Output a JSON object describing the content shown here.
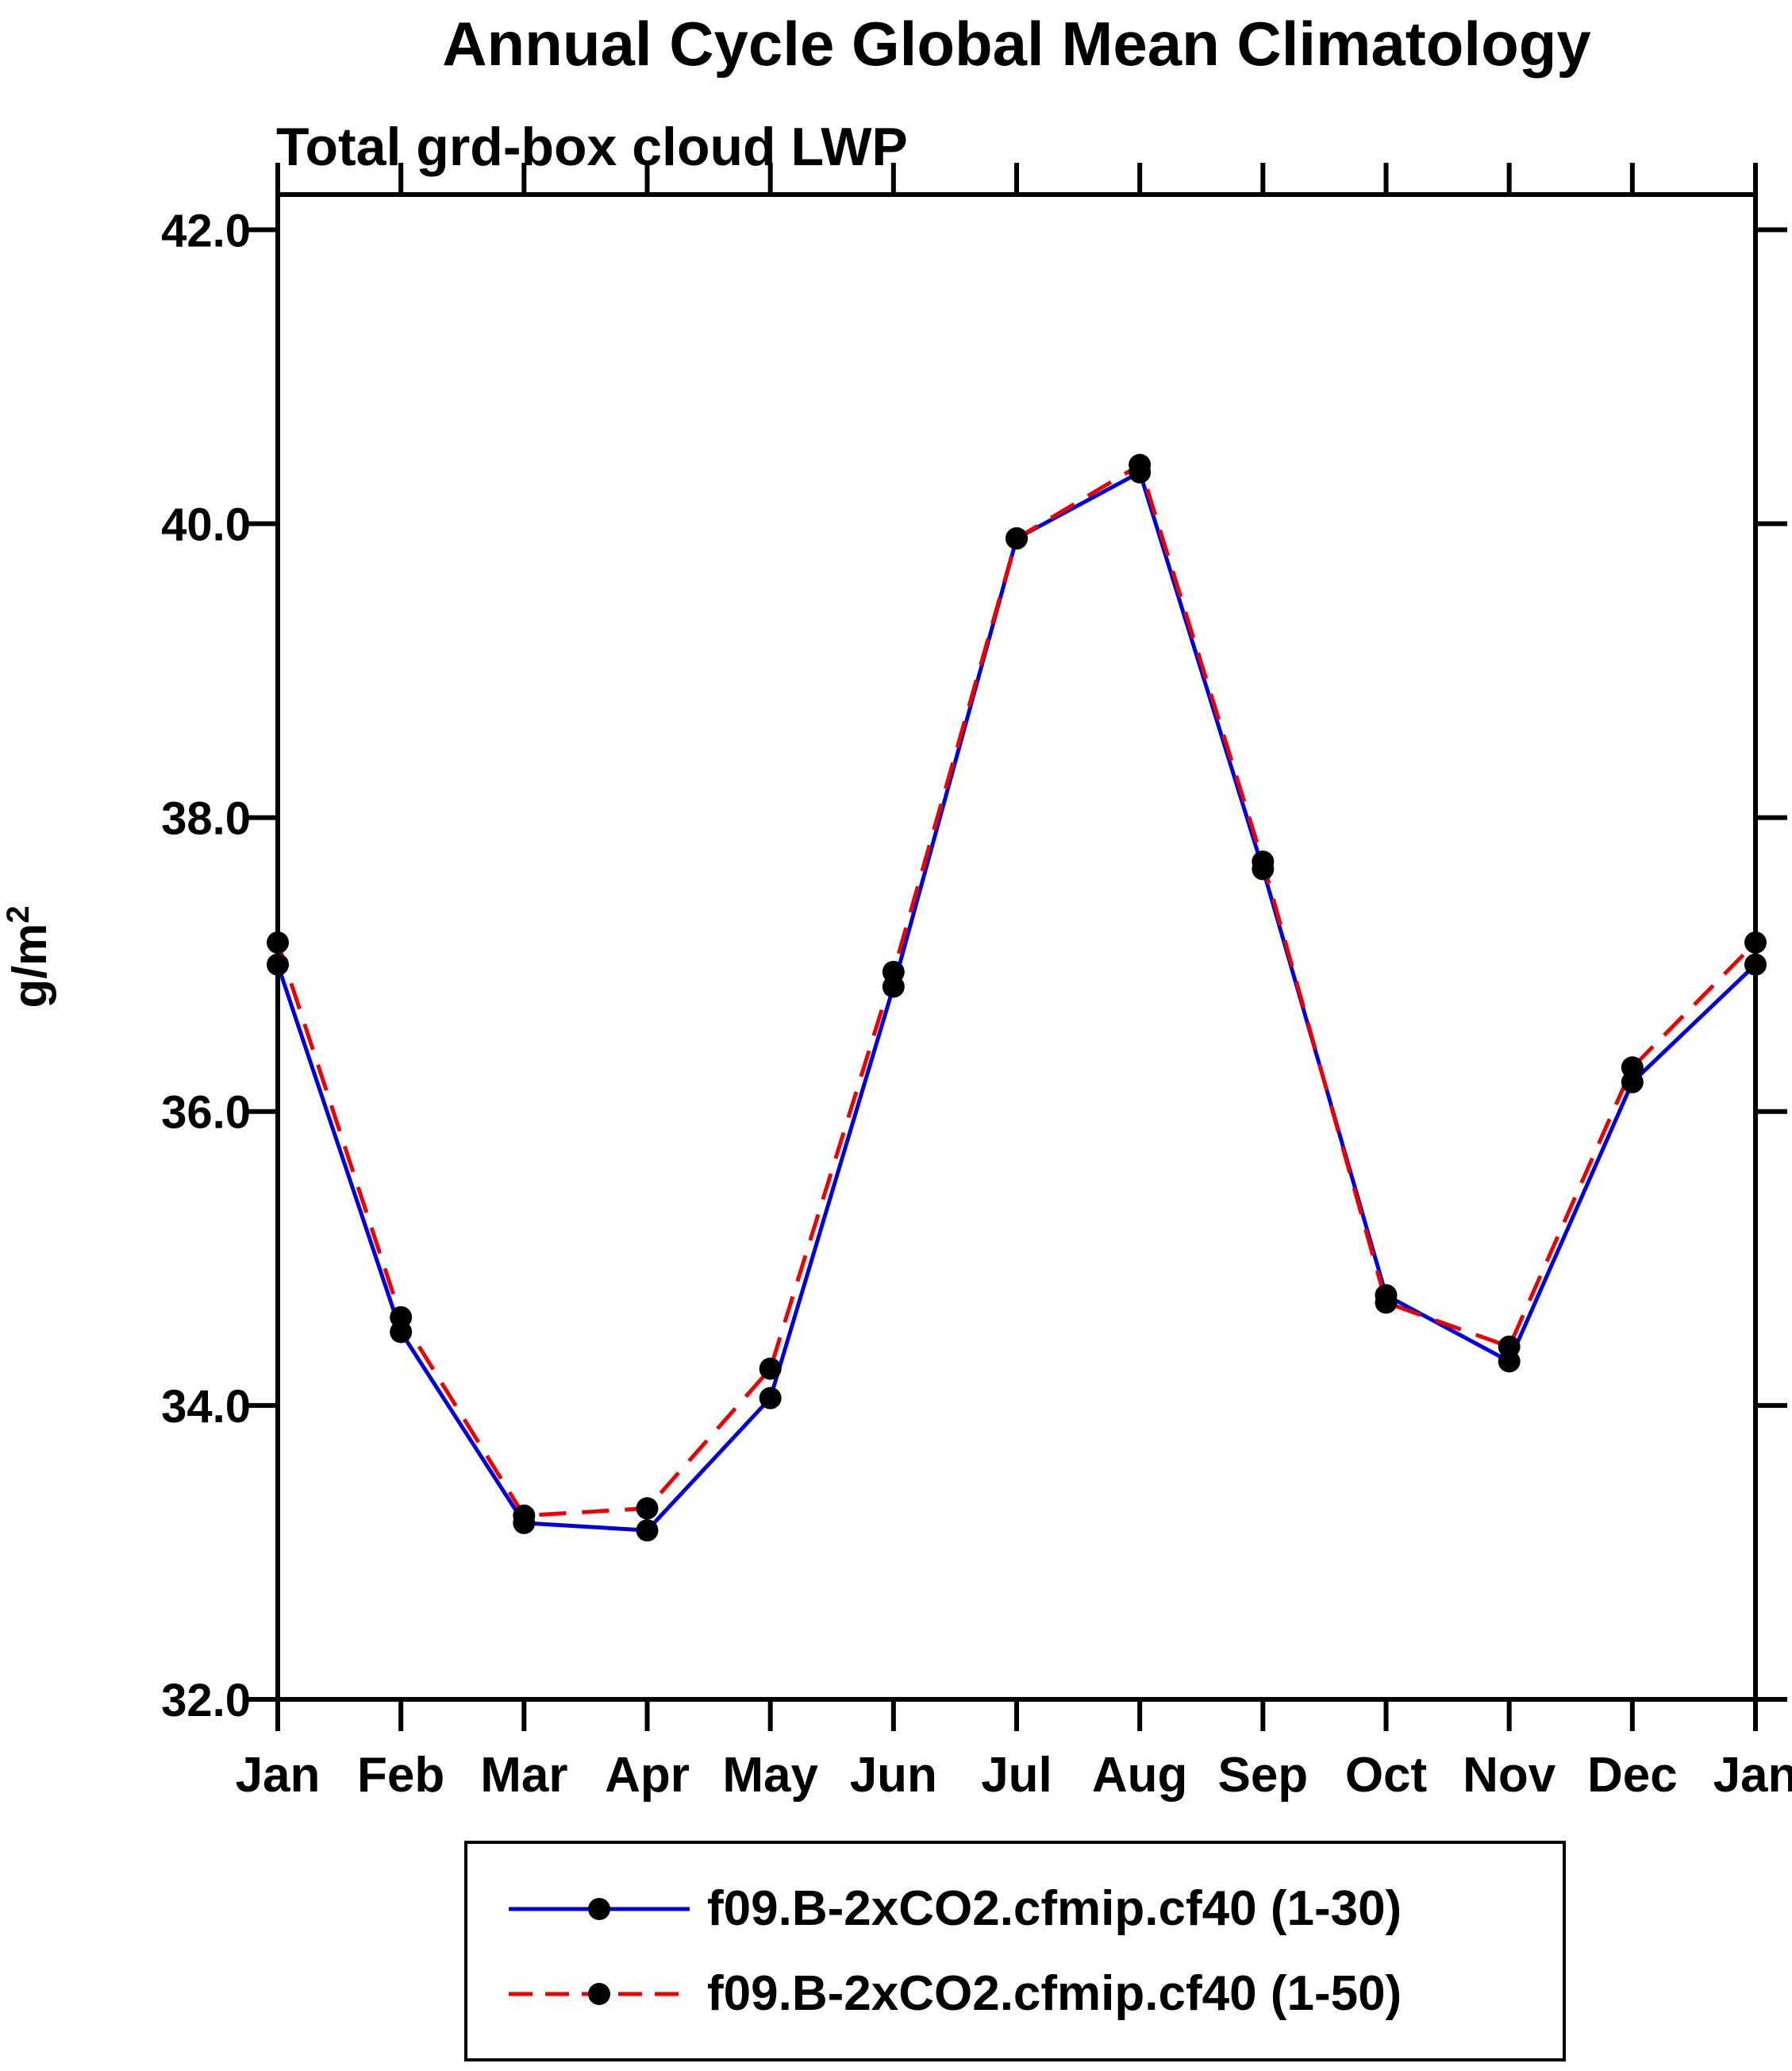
{
  "chart_data": {
    "type": "line",
    "title": "Annual Cycle Global Mean Climatology",
    "subtitle": "Total grd-box cloud LWP",
    "ylabel": "g/m",
    "ylabel_exponent": "2",
    "x_tick_labels": [
      "Jan",
      "Feb",
      "Mar",
      "Apr",
      "May",
      "Jun",
      "Jul",
      "Aug",
      "Sep",
      "Oct",
      "Nov",
      "Dec",
      "Jan"
    ],
    "y_ticks": [
      32.0,
      34.0,
      36.0,
      38.0,
      40.0,
      42.0
    ],
    "y_tick_labels": [
      "32.0",
      "34.0",
      "36.0",
      "38.0",
      "40.0",
      "42.0"
    ],
    "ylim": [
      32.0,
      42.24
    ],
    "grid": false,
    "legend_position": "bottom",
    "marker": "filled-circle",
    "marker_color": "#000000",
    "axis_color": "#000000",
    "series": [
      {
        "name": "f09.B-2xCO2.cfmip.cf40 (1-30)",
        "color": "#0000dd",
        "line_style": "solid",
        "values": [
          37.0,
          34.5,
          33.2,
          33.15,
          34.05,
          36.85,
          39.9,
          40.35,
          37.65,
          34.75,
          34.3,
          36.2,
          37.0
        ]
      },
      {
        "name": "f09.B-2xCO2.cfmip.cf40 (1-50)",
        "color": "#ee0000",
        "line_style": "dashed",
        "values": [
          37.15,
          34.6,
          33.25,
          33.3,
          34.25,
          36.95,
          39.9,
          40.4,
          37.7,
          34.7,
          34.4,
          36.3,
          37.15
        ]
      }
    ]
  }
}
